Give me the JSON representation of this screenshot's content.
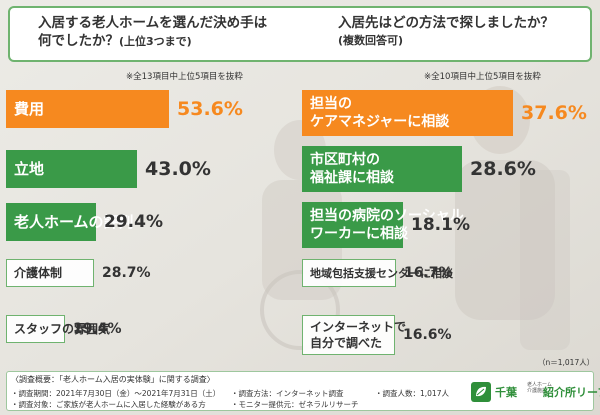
{
  "header": {
    "left_question_line1": "入居する老人ホームを選んだ決め手は",
    "left_question_line2": "何でしたか？",
    "left_question_sub": "(上位3つまで)",
    "right_question_line1": "入居先はどの方法で探しましたか？",
    "right_question_sub": "(複数回答可)"
  },
  "notes": {
    "left": "※全13項目中上位5項目を抜粋",
    "right": "※全10項目中上位5項目を抜粋",
    "n": "（n＝1,017人）"
  },
  "colors": {
    "orange": "#f6891f",
    "green": "#3a9a48",
    "white": "#ffffff",
    "frame": "#6fb36f"
  },
  "chart_data": [
    {
      "type": "bar",
      "orientation": "horizontal",
      "title": "入居する老人ホームを選んだ決め手は何でしたか？(上位3つまで)",
      "unit": "%",
      "categories": [
        "費用",
        "立地",
        "老人ホームの評判",
        "介護体制",
        "スタッフの雰囲気"
      ],
      "values": [
        53.6,
        43.0,
        29.4,
        28.7,
        19.4
      ],
      "value_labels": [
        "53.6%",
        "43.0%",
        "29.4%",
        "28.7%",
        "19.4%"
      ]
    },
    {
      "type": "bar",
      "orientation": "horizontal",
      "title": "入居先はどの方法で探しましたか？(複数回答可)",
      "unit": "%",
      "categories": [
        [
          "担当の",
          "ケアマネジャーに相談"
        ],
        [
          "市区町村の",
          "福祉課に相談"
        ],
        [
          "担当の病院のソーシャル",
          "ワーカーに相談"
        ],
        [
          "地域包括支援センターに相談"
        ],
        [
          "インターネットで",
          "自分で調べた"
        ]
      ],
      "values": [
        37.6,
        28.6,
        18.1,
        16.7,
        16.6
      ],
      "value_labels": [
        "37.6%",
        "28.6%",
        "18.1%",
        "16.7%",
        "16.6%"
      ]
    }
  ],
  "footer": {
    "heading": "〈調査概要：「老人ホーム入居の実体験」に関する調査〉",
    "period": "・調査期間：2021年7月30日（金）〜2021年7月31日（土）",
    "method": "・調査方法：インターネット調査",
    "count": "・調査人数：1,017人",
    "target": "・調査対象：ご家族が老人ホームに入居した経験がある方",
    "provider": "・モニター提供元：ゼネラルリサーチ",
    "logo_main": "千葉",
    "logo_small": "老人ホーム介護施設",
    "logo_name": "紹介所リーブス"
  }
}
